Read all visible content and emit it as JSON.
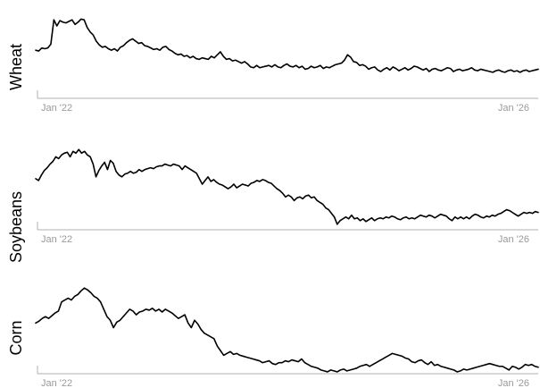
{
  "chart_data": [
    {
      "type": "line",
      "ylabel": "Wheat",
      "x_tick_labels": [
        "Jan '22",
        "Jan '26"
      ],
      "ylim": [
        0,
        100
      ],
      "grid": false,
      "values": [
        48,
        47,
        51,
        50,
        51,
        56,
        88,
        80,
        87,
        85,
        84,
        86,
        88,
        82,
        85,
        89,
        88,
        78,
        72,
        68,
        60,
        55,
        52,
        53,
        50,
        48,
        50,
        47,
        52,
        54,
        58,
        61,
        63,
        60,
        57,
        58,
        54,
        53,
        51,
        49,
        50,
        48,
        52,
        53,
        49,
        47,
        44,
        42,
        43,
        40,
        41,
        38,
        40,
        37,
        36,
        38,
        37,
        36,
        40,
        38,
        42,
        46,
        40,
        36,
        37,
        34,
        35,
        33,
        31,
        33,
        30,
        26,
        25,
        28,
        25,
        26,
        27,
        28,
        26,
        29,
        26,
        25,
        28,
        30,
        27,
        26,
        28,
        25,
        27,
        23,
        24,
        27,
        25,
        26,
        28,
        24,
        26,
        25,
        27,
        29,
        30,
        31,
        35,
        42,
        39,
        33,
        32,
        28,
        29,
        27,
        23,
        25,
        26,
        22,
        20,
        23,
        25,
        22,
        26,
        24,
        21,
        23,
        25,
        22,
        24,
        27,
        26,
        24,
        22,
        24,
        20,
        23,
        24,
        22,
        21,
        23,
        25,
        24,
        20,
        22,
        23,
        21,
        22,
        23,
        25,
        22,
        21,
        23,
        22,
        21,
        20,
        19,
        21,
        22,
        20,
        19,
        21,
        22,
        20,
        21,
        19,
        21,
        22,
        20,
        21,
        22,
        23
      ]
    },
    {
      "type": "line",
      "ylabel": "Soybeans",
      "x_tick_labels": [
        "Jan '22",
        "Jan '26"
      ],
      "ylim": [
        0,
        100
      ],
      "grid": false,
      "values": [
        56,
        54,
        60,
        65,
        68,
        72,
        75,
        80,
        78,
        82,
        84,
        85,
        80,
        86,
        84,
        88,
        84,
        86,
        82,
        80,
        72,
        58,
        65,
        70,
        74,
        66,
        76,
        73,
        64,
        60,
        58,
        61,
        62,
        64,
        62,
        63,
        66,
        64,
        66,
        67,
        68,
        67,
        69,
        70,
        70,
        72,
        71,
        70,
        72,
        71,
        70,
        66,
        70,
        68,
        66,
        64,
        62,
        56,
        50,
        54,
        58,
        53,
        55,
        52,
        50,
        49,
        47,
        45,
        47,
        50,
        46,
        48,
        50,
        49,
        48,
        51,
        52,
        54,
        53,
        55,
        54,
        52,
        51,
        48,
        45,
        43,
        40,
        36,
        38,
        36,
        32,
        35,
        36,
        34,
        37,
        38,
        35,
        36,
        32,
        30,
        28,
        24,
        22,
        18,
        14,
        6,
        10,
        12,
        14,
        12,
        16,
        12,
        13,
        10,
        12,
        9,
        11,
        13,
        10,
        12,
        13,
        12,
        14,
        13,
        15,
        14,
        12,
        11,
        13,
        14,
        12,
        13,
        12,
        14,
        16,
        15,
        14,
        16,
        15,
        13,
        15,
        17,
        16,
        15,
        12,
        10,
        14,
        12,
        14,
        12,
        14,
        12,
        15,
        17,
        16,
        14,
        13,
        15,
        14,
        16,
        15,
        17,
        18,
        20,
        22,
        21,
        19,
        17,
        15,
        17,
        19,
        18,
        19,
        18,
        20,
        19
      ]
    },
    {
      "type": "line",
      "ylabel": "Corn",
      "x_tick_labels": [
        "Jan '22",
        "Jan '26"
      ],
      "ylim": [
        0,
        100
      ],
      "grid": false,
      "values": [
        55,
        57,
        60,
        62,
        60,
        63,
        66,
        68,
        78,
        80,
        82,
        80,
        84,
        86,
        90,
        93,
        91,
        88,
        84,
        82,
        78,
        70,
        62,
        58,
        50,
        56,
        58,
        62,
        66,
        70,
        68,
        64,
        67,
        68,
        70,
        69,
        71,
        68,
        70,
        67,
        70,
        68,
        66,
        63,
        60,
        62,
        64,
        55,
        50,
        58,
        54,
        48,
        44,
        42,
        40,
        38,
        30,
        25,
        20,
        22,
        24,
        21,
        22,
        20,
        19,
        18,
        17,
        16,
        15,
        14,
        12,
        13,
        14,
        11,
        10,
        12,
        12,
        14,
        13,
        15,
        14,
        13,
        16,
        12,
        10,
        8,
        7,
        6,
        4,
        3,
        2,
        4,
        3,
        2,
        4,
        5,
        3,
        4,
        5,
        6,
        8,
        9,
        10,
        8,
        10,
        12,
        14,
        16,
        18,
        20,
        22,
        21,
        20,
        19,
        17,
        16,
        13,
        12,
        14,
        15,
        12,
        10,
        13,
        9,
        10,
        8,
        7,
        6,
        5,
        4,
        2,
        3,
        5,
        4,
        5,
        6,
        7,
        8,
        9,
        10,
        11,
        10,
        9,
        8,
        8,
        6,
        4,
        8,
        7,
        5,
        7,
        10,
        9,
        10,
        8,
        7
      ]
    }
  ]
}
